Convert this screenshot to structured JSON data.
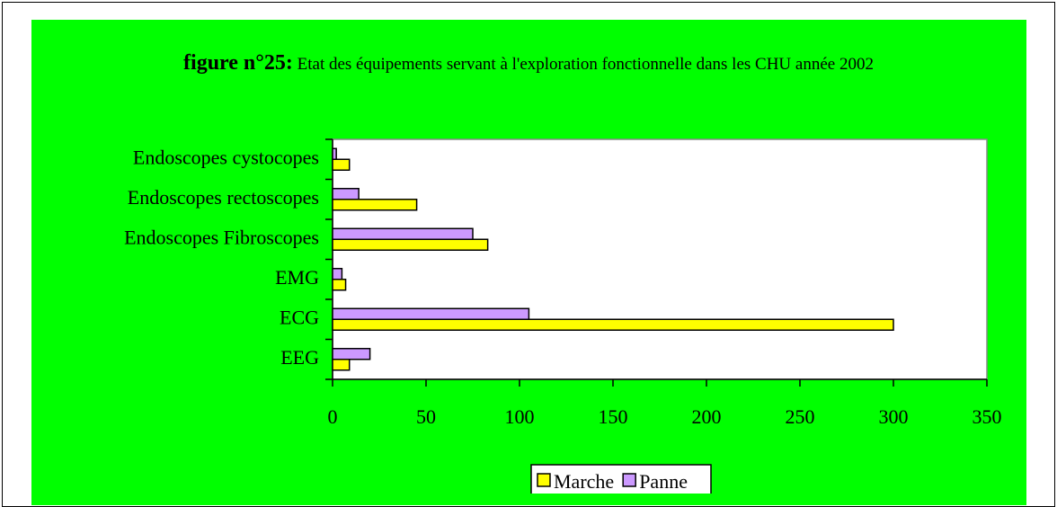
{
  "chart_data": {
    "type": "barh",
    "title": "figure n°25:",
    "subtitle": "Etat des équipements servant à l'exploration fonctionnelle dans les CHU année 2002",
    "categories": [
      "EEG",
      "ECG",
      "EMG",
      "Endoscopes Fibroscopes",
      "Endoscopes rectoscopes",
      "Endoscopes cystocopes"
    ],
    "series": [
      {
        "name": "Marche",
        "color": "#ffff00",
        "values": [
          9,
          300,
          7,
          83,
          45,
          9
        ]
      },
      {
        "name": "Panne",
        "color": "#cc99ff",
        "values": [
          20,
          105,
          5,
          75,
          14,
          2
        ]
      }
    ],
    "xlim": [
      0,
      350
    ],
    "xticks": [
      0,
      50,
      100,
      150,
      200,
      250,
      300,
      350
    ],
    "background": "#00ff00",
    "legend": "bottom"
  }
}
